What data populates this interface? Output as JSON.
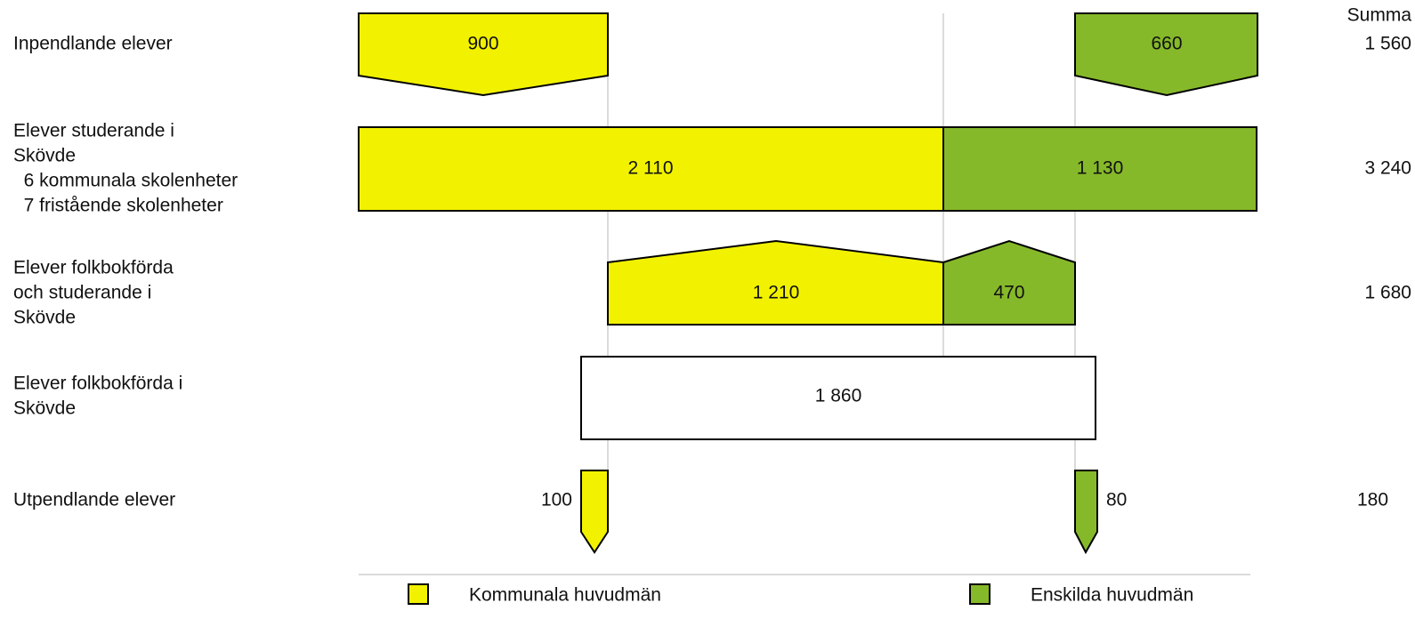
{
  "summa_header": "Summa",
  "rows": [
    {
      "label": [
        "Inpendlande elever"
      ],
      "kommunal": "900",
      "enskild": "660",
      "summa": "1 560"
    },
    {
      "label": [
        "Elever studerande i",
        "Skövde",
        "  6 kommunala skolenheter",
        "  7 fristående skolenheter"
      ],
      "kommunal": "2 110",
      "enskild": "1 130",
      "summa": "3 240"
    },
    {
      "label": [
        "Elever folkbokförda",
        "och studerande i",
        "Skövde"
      ],
      "kommunal": "1 210",
      "enskild": "470",
      "summa": "1 680"
    },
    {
      "label": [
        "Elever folkbokförda i",
        "Skövde"
      ],
      "total": "1 860"
    },
    {
      "label": [
        "Utpendlande elever"
      ],
      "kommunal": "100",
      "enskild": "80",
      "summa": "180"
    }
  ],
  "legend": {
    "kommunal": "Kommunala huvudmän",
    "enskild": "Enskilda huvudmän"
  }
}
